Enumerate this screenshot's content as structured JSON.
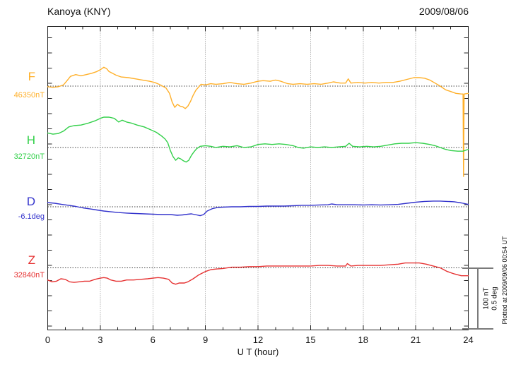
{
  "header": {
    "title": "Kanoya (KNY)",
    "date": "2009/08/06"
  },
  "x_axis": {
    "label": "U T (hour)",
    "ticks": [
      "0",
      "3",
      "6",
      "9",
      "12",
      "15",
      "18",
      "21",
      "24"
    ],
    "tick_hours": [
      0,
      3,
      6,
      9,
      12,
      15,
      18,
      21,
      24
    ],
    "minor_step_hours": 1,
    "range_hours": [
      0,
      24
    ]
  },
  "scale_bar": {
    "labels": [
      "100 nT",
      "0.5 deg"
    ],
    "nT": 100,
    "deg": 0.5
  },
  "footer_note": "Plotted at 2009/09/06 00:54 UT",
  "chart_data": {
    "type": "line",
    "title": "Kanoya (KNY) magnetogram, 2009/08/06",
    "xlabel": "U T (hour)",
    "x_range": [
      0,
      24
    ],
    "grid": "dotted vertical every 3 h; dotted horizontal baseline per channel",
    "legend_position": "left margin channel labels",
    "channels": [
      {
        "id": "F",
        "label": "F",
        "baseline_label": "46350nT",
        "baseline_value": 46350,
        "unit": "nT",
        "color": "#ffb02a",
        "points": [
          [
            0,
            -1
          ],
          [
            0.3,
            -2
          ],
          [
            0.6,
            -1
          ],
          [
            0.9,
            2
          ],
          [
            1.1,
            9
          ],
          [
            1.3,
            16
          ],
          [
            1.6,
            19
          ],
          [
            1.9,
            17
          ],
          [
            2.2,
            19
          ],
          [
            2.5,
            21
          ],
          [
            2.8,
            24
          ],
          [
            3.0,
            27
          ],
          [
            3.2,
            31
          ],
          [
            3.35,
            29
          ],
          [
            3.5,
            24
          ],
          [
            3.7,
            21
          ],
          [
            3.9,
            18
          ],
          [
            4.2,
            15
          ],
          [
            4.6,
            14
          ],
          [
            5.0,
            12
          ],
          [
            5.4,
            10
          ],
          [
            5.8,
            8
          ],
          [
            6.1,
            6
          ],
          [
            6.35,
            3
          ],
          [
            6.55,
            0
          ],
          [
            6.75,
            -3
          ],
          [
            6.95,
            -12
          ],
          [
            7.1,
            -26
          ],
          [
            7.25,
            -35
          ],
          [
            7.4,
            -30
          ],
          [
            7.55,
            -33
          ],
          [
            7.7,
            -34
          ],
          [
            7.85,
            -37
          ],
          [
            8.0,
            -33
          ],
          [
            8.15,
            -25
          ],
          [
            8.3,
            -15
          ],
          [
            8.45,
            -7
          ],
          [
            8.6,
            -2
          ],
          [
            8.75,
            3
          ],
          [
            9.0,
            2
          ],
          [
            9.3,
            4
          ],
          [
            9.6,
            3
          ],
          [
            10.0,
            4
          ],
          [
            10.4,
            6
          ],
          [
            10.8,
            4
          ],
          [
            11.2,
            3
          ],
          [
            11.6,
            5
          ],
          [
            12.0,
            8
          ],
          [
            12.3,
            9
          ],
          [
            12.7,
            8
          ],
          [
            13.0,
            10
          ],
          [
            13.3,
            8
          ],
          [
            13.7,
            4
          ],
          [
            14.0,
            3
          ],
          [
            14.4,
            4
          ],
          [
            14.8,
            3
          ],
          [
            15.2,
            4
          ],
          [
            15.6,
            3
          ],
          [
            16.0,
            5
          ],
          [
            16.3,
            7
          ],
          [
            16.7,
            5
          ],
          [
            17.0,
            5
          ],
          [
            17.15,
            12
          ],
          [
            17.3,
            5
          ],
          [
            17.7,
            6
          ],
          [
            18.1,
            5
          ],
          [
            18.5,
            6
          ],
          [
            18.9,
            5
          ],
          [
            19.3,
            6
          ],
          [
            19.7,
            6
          ],
          [
            20.1,
            8
          ],
          [
            20.5,
            11
          ],
          [
            20.9,
            14
          ],
          [
            21.2,
            14
          ],
          [
            21.5,
            13
          ],
          [
            21.8,
            10
          ],
          [
            22.1,
            5
          ],
          [
            22.4,
            0
          ],
          [
            22.7,
            -6
          ],
          [
            23.0,
            -9
          ],
          [
            23.3,
            -12
          ],
          [
            23.6,
            -13
          ],
          [
            23.7,
            -13
          ],
          [
            23.73,
            -149
          ],
          [
            23.76,
            -13
          ],
          [
            24,
            -12
          ]
        ]
      },
      {
        "id": "H",
        "label": "H",
        "baseline_label": "32720nT",
        "baseline_value": 32720,
        "unit": "nT",
        "color": "#33d04a",
        "points": [
          [
            0,
            24
          ],
          [
            0.3,
            22
          ],
          [
            0.6,
            23
          ],
          [
            0.9,
            27
          ],
          [
            1.2,
            34
          ],
          [
            1.5,
            36
          ],
          [
            1.9,
            37
          ],
          [
            2.3,
            40
          ],
          [
            2.7,
            44
          ],
          [
            3.0,
            48
          ],
          [
            3.2,
            50
          ],
          [
            3.5,
            50
          ],
          [
            3.8,
            48
          ],
          [
            4.05,
            42
          ],
          [
            4.25,
            45
          ],
          [
            4.5,
            42
          ],
          [
            4.8,
            40
          ],
          [
            5.1,
            37
          ],
          [
            5.5,
            34
          ],
          [
            5.9,
            29
          ],
          [
            6.2,
            25
          ],
          [
            6.5,
            19
          ],
          [
            6.7,
            14
          ],
          [
            6.85,
            8
          ],
          [
            7.0,
            -5
          ],
          [
            7.15,
            -15
          ],
          [
            7.3,
            -21
          ],
          [
            7.45,
            -17
          ],
          [
            7.6,
            -19
          ],
          [
            7.75,
            -22
          ],
          [
            7.9,
            -24
          ],
          [
            8.05,
            -21
          ],
          [
            8.2,
            -13
          ],
          [
            8.35,
            -7
          ],
          [
            8.5,
            -2
          ],
          [
            8.7,
            2
          ],
          [
            9.0,
            3
          ],
          [
            9.3,
            2
          ],
          [
            9.6,
            0
          ],
          [
            10.0,
            2
          ],
          [
            10.4,
            1
          ],
          [
            10.8,
            3
          ],
          [
            11.2,
            0
          ],
          [
            11.6,
            1
          ],
          [
            12.0,
            5
          ],
          [
            12.4,
            6
          ],
          [
            12.8,
            5
          ],
          [
            13.2,
            6
          ],
          [
            13.6,
            5
          ],
          [
            14.0,
            3
          ],
          [
            14.3,
            0
          ],
          [
            14.6,
            -1
          ],
          [
            15.0,
            1
          ],
          [
            15.4,
            0
          ],
          [
            15.8,
            1
          ],
          [
            16.2,
            0
          ],
          [
            16.6,
            1
          ],
          [
            17.0,
            2
          ],
          [
            17.2,
            7
          ],
          [
            17.4,
            2
          ],
          [
            17.8,
            1
          ],
          [
            18.2,
            2
          ],
          [
            18.6,
            1
          ],
          [
            19.0,
            2
          ],
          [
            19.4,
            4
          ],
          [
            19.8,
            6
          ],
          [
            20.2,
            7
          ],
          [
            20.6,
            7
          ],
          [
            21.0,
            8
          ],
          [
            21.4,
            7
          ],
          [
            21.8,
            5
          ],
          [
            22.1,
            3
          ],
          [
            22.4,
            0
          ],
          [
            22.7,
            -3
          ],
          [
            23.0,
            -5
          ],
          [
            23.4,
            -6
          ],
          [
            23.7,
            -6
          ],
          [
            24,
            -3
          ]
        ]
      },
      {
        "id": "D",
        "label": "D",
        "baseline_label": "-6.1deg",
        "baseline_value": -6.1,
        "unit": "deg",
        "color": "#3333cc",
        "points": [
          [
            0,
            0.035
          ],
          [
            0.4,
            0.029
          ],
          [
            0.8,
            0.02
          ],
          [
            1.2,
            0.012
          ],
          [
            1.6,
            0.003
          ],
          [
            2.0,
            -0.009
          ],
          [
            2.4,
            -0.017
          ],
          [
            2.8,
            -0.026
          ],
          [
            3.2,
            -0.035
          ],
          [
            3.6,
            -0.041
          ],
          [
            4.0,
            -0.047
          ],
          [
            4.5,
            -0.052
          ],
          [
            5.0,
            -0.055
          ],
          [
            5.5,
            -0.058
          ],
          [
            6.0,
            -0.061
          ],
          [
            6.5,
            -0.064
          ],
          [
            7.0,
            -0.064
          ],
          [
            7.4,
            -0.07
          ],
          [
            7.7,
            -0.067
          ],
          [
            8.0,
            -0.061
          ],
          [
            8.2,
            -0.058
          ],
          [
            8.5,
            -0.067
          ],
          [
            8.7,
            -0.073
          ],
          [
            8.9,
            -0.064
          ],
          [
            9.1,
            -0.035
          ],
          [
            9.4,
            -0.015
          ],
          [
            9.7,
            -0.006
          ],
          [
            10.0,
            -0.003
          ],
          [
            10.5,
            0
          ],
          [
            11.0,
            0
          ],
          [
            11.5,
            0.003
          ],
          [
            12.0,
            0.003
          ],
          [
            12.5,
            0.006
          ],
          [
            13.0,
            0.006
          ],
          [
            13.5,
            0.006
          ],
          [
            14.0,
            0.009
          ],
          [
            14.5,
            0.012
          ],
          [
            15.0,
            0.012
          ],
          [
            15.5,
            0.015
          ],
          [
            16.0,
            0.017
          ],
          [
            16.2,
            0.023
          ],
          [
            16.5,
            0.017
          ],
          [
            17.0,
            0.017
          ],
          [
            17.5,
            0.017
          ],
          [
            18.0,
            0.015
          ],
          [
            18.5,
            0.017
          ],
          [
            19.0,
            0.015
          ],
          [
            19.5,
            0.017
          ],
          [
            20.0,
            0.02
          ],
          [
            20.5,
            0.029
          ],
          [
            21.0,
            0.038
          ],
          [
            21.5,
            0.044
          ],
          [
            22.0,
            0.047
          ],
          [
            22.4,
            0.047
          ],
          [
            22.8,
            0.044
          ],
          [
            23.2,
            0.041
          ],
          [
            23.6,
            0.032
          ],
          [
            24,
            0.02
          ]
        ]
      },
      {
        "id": "Z",
        "label": "Z",
        "baseline_label": "32840nT",
        "baseline_value": 32840,
        "unit": "nT",
        "color": "#e63232",
        "points": [
          [
            0,
            -20
          ],
          [
            0.25,
            -23
          ],
          [
            0.5,
            -22
          ],
          [
            0.75,
            -18
          ],
          [
            1.0,
            -19
          ],
          [
            1.25,
            -23
          ],
          [
            1.5,
            -24
          ],
          [
            1.8,
            -23
          ],
          [
            2.1,
            -22
          ],
          [
            2.4,
            -22
          ],
          [
            2.7,
            -19
          ],
          [
            3.0,
            -17
          ],
          [
            3.2,
            -16
          ],
          [
            3.4,
            -17
          ],
          [
            3.6,
            -20
          ],
          [
            3.9,
            -22
          ],
          [
            4.2,
            -22
          ],
          [
            4.5,
            -20
          ],
          [
            4.9,
            -20
          ],
          [
            5.3,
            -19
          ],
          [
            5.7,
            -18
          ],
          [
            6.0,
            -17
          ],
          [
            6.3,
            -16
          ],
          [
            6.6,
            -17
          ],
          [
            6.9,
            -19
          ],
          [
            7.1,
            -25
          ],
          [
            7.3,
            -27
          ],
          [
            7.5,
            -25
          ],
          [
            7.8,
            -25
          ],
          [
            8.0,
            -23
          ],
          [
            8.3,
            -18
          ],
          [
            8.6,
            -12
          ],
          [
            9.0,
            -6
          ],
          [
            9.3,
            -3
          ],
          [
            9.6,
            -2
          ],
          [
            10.0,
            -1
          ],
          [
            10.5,
            1
          ],
          [
            11.0,
            1
          ],
          [
            11.5,
            2
          ],
          [
            12.0,
            2
          ],
          [
            12.5,
            3
          ],
          [
            13.0,
            3
          ],
          [
            13.5,
            3
          ],
          [
            14.0,
            3
          ],
          [
            14.5,
            3
          ],
          [
            15.0,
            3
          ],
          [
            15.5,
            4
          ],
          [
            16.0,
            4
          ],
          [
            16.5,
            3
          ],
          [
            17.0,
            3
          ],
          [
            17.1,
            7
          ],
          [
            17.3,
            3
          ],
          [
            17.7,
            4
          ],
          [
            18.1,
            4
          ],
          [
            18.5,
            4
          ],
          [
            19.0,
            4
          ],
          [
            19.5,
            5
          ],
          [
            20.0,
            6
          ],
          [
            20.4,
            8
          ],
          [
            20.8,
            8
          ],
          [
            21.2,
            8
          ],
          [
            21.6,
            6
          ],
          [
            22.0,
            3
          ],
          [
            22.4,
            0
          ],
          [
            22.8,
            -6
          ],
          [
            23.2,
            -10
          ],
          [
            23.6,
            -13
          ],
          [
            24,
            -13
          ]
        ]
      }
    ],
    "note": "point values are offsets from each channel baseline (nT for F,H,Z; deg for D)"
  },
  "colors": {
    "frame": "#222222",
    "grid_vertical": "#8a8a8a",
    "grid_baseline": "#444444",
    "scale_bar": "#7a7a7a",
    "text": "#111111"
  }
}
